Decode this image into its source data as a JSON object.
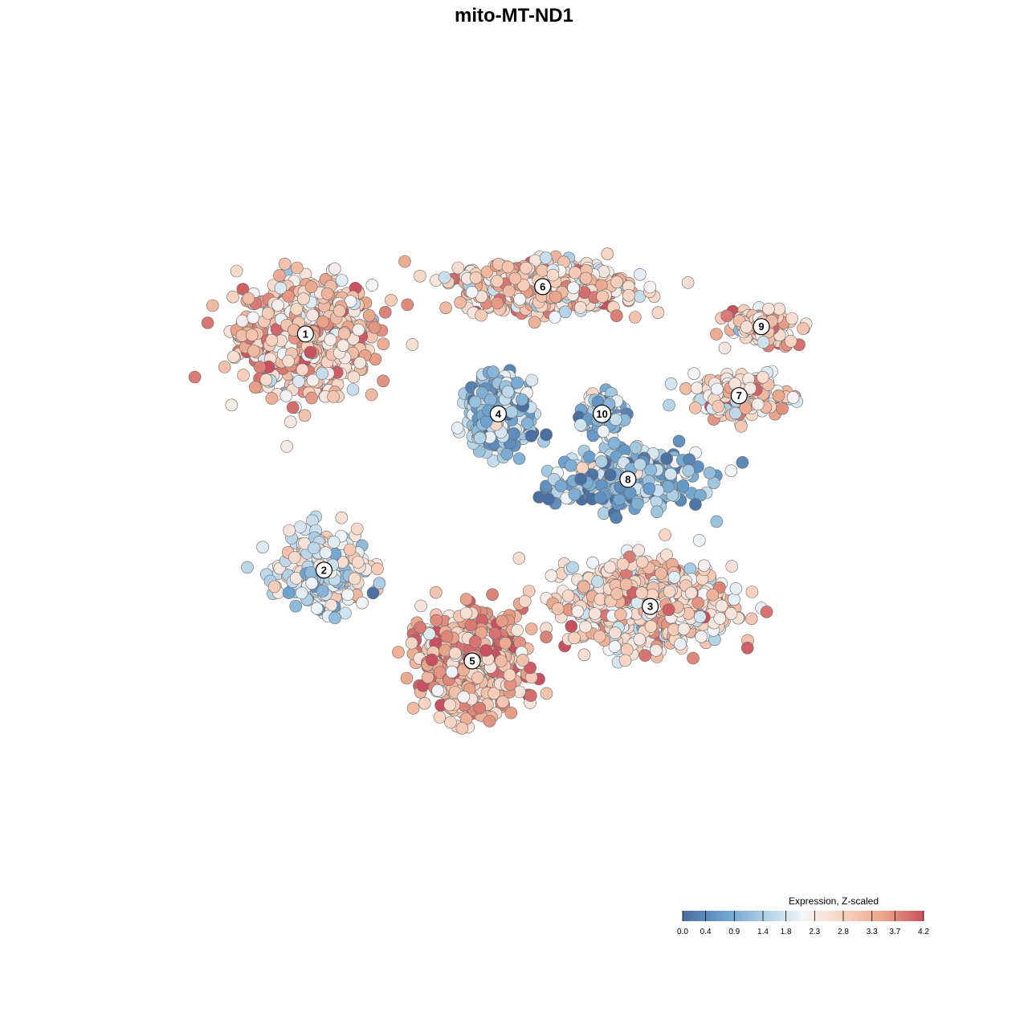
{
  "chart_data": {
    "type": "scatter",
    "title": "mito-MT-ND1",
    "xlabel": "",
    "ylabel": "",
    "color_scale": {
      "title": "Expression, Z-scaled",
      "ticks": [
        "0.0",
        "0.4",
        "0.9",
        "1.4",
        "1.8",
        "2.3",
        "2.8",
        "3.3",
        "3.7",
        "4.2"
      ],
      "min": 0.0,
      "max": 4.2,
      "colors": [
        "#4a6fa0",
        "#6a9fcd",
        "#a9cde3",
        "#f3f6f9",
        "#f8d2bf",
        "#eaa58a",
        "#c9505e"
      ]
    },
    "clusters": [
      {
        "label": "1",
        "x": -0.62,
        "y": 0.49,
        "spread_x": 0.16,
        "spread_y": 0.14,
        "n": 700,
        "mean_expr": 2.9
      },
      {
        "label": "2",
        "x": -0.57,
        "y": -0.16,
        "spread_x": 0.1,
        "spread_y": 0.09,
        "n": 280,
        "mean_expr": 1.9
      },
      {
        "label": "3",
        "x": 0.31,
        "y": -0.26,
        "spread_x": 0.2,
        "spread_y": 0.1,
        "n": 700,
        "mean_expr": 2.7
      },
      {
        "label": "4",
        "x": -0.1,
        "y": 0.27,
        "spread_x": 0.07,
        "spread_y": 0.08,
        "n": 420,
        "mean_expr": 1.1
      },
      {
        "label": "5",
        "x": -0.17,
        "y": -0.41,
        "spread_x": 0.12,
        "spread_y": 0.12,
        "n": 650,
        "mean_expr": 3.2
      },
      {
        "label": "6",
        "x": 0.02,
        "y": 0.62,
        "spread_x": 0.2,
        "spread_y": 0.06,
        "n": 600,
        "mean_expr": 2.8
      },
      {
        "label": "7",
        "x": 0.55,
        "y": 0.32,
        "spread_x": 0.11,
        "spread_y": 0.05,
        "n": 230,
        "mean_expr": 2.8
      },
      {
        "label": "8",
        "x": 0.25,
        "y": 0.09,
        "spread_x": 0.17,
        "spread_y": 0.07,
        "n": 350,
        "mean_expr": 1.0
      },
      {
        "label": "9",
        "x": 0.61,
        "y": 0.51,
        "spread_x": 0.08,
        "spread_y": 0.04,
        "n": 150,
        "mean_expr": 2.9
      },
      {
        "label": "10",
        "x": 0.18,
        "y": 0.27,
        "spread_x": 0.05,
        "spread_y": 0.05,
        "n": 100,
        "mean_expr": 1.3
      }
    ]
  }
}
